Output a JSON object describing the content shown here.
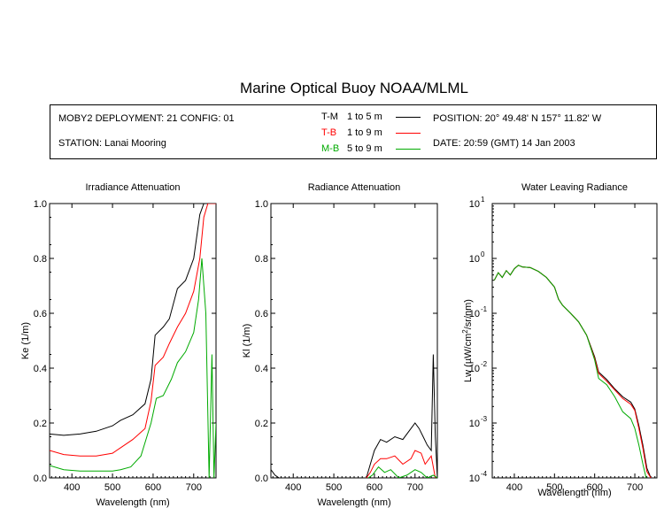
{
  "title": "Marine Optical Buoy NOAA/MLML",
  "info": {
    "deployment": "MOBY2 DEPLOYMENT: 21 CONFIG: 01",
    "station": "STATION: Lanai Mooring",
    "position": "POSITION: 20° 49.48' N   157° 11.82' W",
    "date": "DATE: 20:59 (GMT) 14 Jan 2003",
    "legend": [
      {
        "code": "T-M",
        "range": "1 to 5  m",
        "color": "#000000"
      },
      {
        "code": "T-B",
        "range": "1 to 9  m",
        "color": "#ff0000"
      },
      {
        "code": "M-B",
        "range": "5 to 9  m",
        "color": "#00aa00"
      }
    ]
  },
  "chart_data": [
    {
      "type": "line",
      "title": "Irradiance Attenuation",
      "xlabel": "Wavelength (nm)",
      "ylabel": "Ke  (1/m)",
      "xlim": [
        345,
        755
      ],
      "ylim": [
        0,
        1
      ],
      "xticks": [
        400,
        500,
        600,
        700
      ],
      "yticks": [
        "0.0",
        "0.2",
        "0.4",
        "0.6",
        "0.8",
        "1.0"
      ],
      "series": [
        {
          "color": "#000000",
          "points": [
            [
              345,
              0.16
            ],
            [
              380,
              0.155
            ],
            [
              420,
              0.16
            ],
            [
              460,
              0.17
            ],
            [
              500,
              0.19
            ],
            [
              520,
              0.21
            ],
            [
              550,
              0.23
            ],
            [
              580,
              0.27
            ],
            [
              595,
              0.36
            ],
            [
              605,
              0.52
            ],
            [
              625,
              0.55
            ],
            [
              640,
              0.58
            ],
            [
              660,
              0.69
            ],
            [
              680,
              0.72
            ],
            [
              700,
              0.8
            ],
            [
              715,
              0.96
            ],
            [
              725,
              1.0
            ],
            [
              755,
              1.0
            ]
          ]
        },
        {
          "color": "#ff0000",
          "points": [
            [
              345,
              0.1
            ],
            [
              380,
              0.085
            ],
            [
              420,
              0.08
            ],
            [
              460,
              0.08
            ],
            [
              500,
              0.09
            ],
            [
              520,
              0.11
            ],
            [
              550,
              0.14
            ],
            [
              580,
              0.18
            ],
            [
              595,
              0.28
            ],
            [
              605,
              0.41
            ],
            [
              625,
              0.44
            ],
            [
              640,
              0.49
            ],
            [
              660,
              0.55
            ],
            [
              680,
              0.6
            ],
            [
              700,
              0.68
            ],
            [
              715,
              0.8
            ],
            [
              725,
              0.95
            ],
            [
              735,
              1.0
            ],
            [
              755,
              1.0
            ]
          ]
        },
        {
          "color": "#00aa00",
          "points": [
            [
              345,
              0.045
            ],
            [
              380,
              0.03
            ],
            [
              420,
              0.025
            ],
            [
              460,
              0.025
            ],
            [
              500,
              0.025
            ],
            [
              520,
              0.03
            ],
            [
              545,
              0.04
            ],
            [
              570,
              0.08
            ],
            [
              595,
              0.2
            ],
            [
              608,
              0.29
            ],
            [
              625,
              0.3
            ],
            [
              645,
              0.36
            ],
            [
              660,
              0.42
            ],
            [
              680,
              0.46
            ],
            [
              700,
              0.53
            ],
            [
              712,
              0.65
            ],
            [
              720,
              0.8
            ],
            [
              730,
              0.6
            ],
            [
              738,
              0.0
            ],
            [
              745,
              0.45
            ],
            [
              750,
              0.0
            ],
            [
              755,
              0.2
            ]
          ]
        }
      ]
    },
    {
      "type": "line",
      "title": "Radiance Attenuation",
      "xlabel": "Wavelength (nm)",
      "ylabel": "Kl  (1/m)",
      "xlim": [
        345,
        755
      ],
      "ylim": [
        0,
        1
      ],
      "xticks": [
        400,
        500,
        600,
        700
      ],
      "yticks": [
        "0.0",
        "0.2",
        "0.4",
        "0.6",
        "0.8",
        "1.0"
      ],
      "series": [
        {
          "color": "#000000",
          "points": [
            [
              345,
              0.03
            ],
            [
              355,
              0.01
            ],
            [
              365,
              0.0
            ],
            [
              580,
              0.0
            ],
            [
              590,
              0.05
            ],
            [
              600,
              0.1
            ],
            [
              615,
              0.14
            ],
            [
              630,
              0.13
            ],
            [
              650,
              0.15
            ],
            [
              670,
              0.14
            ],
            [
              690,
              0.18
            ],
            [
              700,
              0.2
            ],
            [
              710,
              0.18
            ],
            [
              720,
              0.15
            ],
            [
              730,
              0.12
            ],
            [
              740,
              0.1
            ],
            [
              745,
              0.45
            ],
            [
              750,
              0.15
            ],
            [
              755,
              0.0
            ]
          ]
        },
        {
          "color": "#ff0000",
          "points": [
            [
              580,
              0.0
            ],
            [
              590,
              0.02
            ],
            [
              600,
              0.05
            ],
            [
              615,
              0.07
            ],
            [
              630,
              0.07
            ],
            [
              650,
              0.08
            ],
            [
              670,
              0.05
            ],
            [
              690,
              0.07
            ],
            [
              700,
              0.1
            ],
            [
              715,
              0.09
            ],
            [
              725,
              0.05
            ],
            [
              740,
              0.08
            ],
            [
              750,
              0.0
            ]
          ]
        },
        {
          "color": "#00aa00",
          "points": [
            [
              585,
              0.0
            ],
            [
              595,
              0.01
            ],
            [
              610,
              0.04
            ],
            [
              625,
              0.02
            ],
            [
              640,
              0.03
            ],
            [
              660,
              0.0
            ],
            [
              680,
              0.01
            ],
            [
              700,
              0.03
            ],
            [
              715,
              0.02
            ],
            [
              730,
              0.0
            ],
            [
              745,
              0.01
            ],
            [
              755,
              0.0
            ]
          ]
        }
      ]
    },
    {
      "type": "line",
      "title": "Water Leaving Radiance",
      "xlabel": "Wavelength (nm)",
      "ylabel": "Lw  (µW/cm²/sr/nm)",
      "ylabel_parts": {
        "pre": "Lw  (",
        "mu": "µ",
        "mid": "W/cm",
        "sup": "2",
        "post": "/sr/nm)"
      },
      "yscale": "log",
      "xlim": [
        345,
        755
      ],
      "ylim": [
        0.0001,
        10
      ],
      "xticks": [
        400,
        500,
        600,
        700
      ],
      "yticks": [
        {
          "base": "10",
          "exp": "-4",
          "value": 0.0001
        },
        {
          "base": "10",
          "exp": "-3",
          "value": 0.001
        },
        {
          "base": "10",
          "exp": "-2",
          "value": 0.01
        },
        {
          "base": "10",
          "exp": "-1",
          "value": 0.1
        },
        {
          "base": "10",
          "exp": "0",
          "value": 1
        },
        {
          "base": "10",
          "exp": "1",
          "value": 10
        }
      ],
      "series": [
        {
          "color": "#000000",
          "points": [
            [
              350,
              0.4
            ],
            [
              360,
              0.55
            ],
            [
              370,
              0.45
            ],
            [
              380,
              0.6
            ],
            [
              390,
              0.5
            ],
            [
              400,
              0.65
            ],
            [
              410,
              0.75
            ],
            [
              420,
              0.7
            ],
            [
              440,
              0.68
            ],
            [
              460,
              0.58
            ],
            [
              480,
              0.45
            ],
            [
              500,
              0.3
            ],
            [
              510,
              0.18
            ],
            [
              520,
              0.14
            ],
            [
              540,
              0.1
            ],
            [
              560,
              0.07
            ],
            [
              580,
              0.04
            ],
            [
              600,
              0.016
            ],
            [
              610,
              0.0085
            ],
            [
              630,
              0.0062
            ],
            [
              650,
              0.0042
            ],
            [
              670,
              0.003
            ],
            [
              690,
              0.0024
            ],
            [
              700,
              0.0018
            ],
            [
              710,
              0.0009
            ],
            [
              720,
              0.0004
            ],
            [
              730,
              0.00015
            ],
            [
              740,
              0.0001
            ]
          ]
        },
        {
          "color": "#ff0000",
          "points": [
            [
              350,
              0.4
            ],
            [
              360,
              0.55
            ],
            [
              370,
              0.45
            ],
            [
              380,
              0.6
            ],
            [
              390,
              0.5
            ],
            [
              400,
              0.65
            ],
            [
              410,
              0.75
            ],
            [
              420,
              0.7
            ],
            [
              440,
              0.68
            ],
            [
              460,
              0.58
            ],
            [
              480,
              0.45
            ],
            [
              500,
              0.3
            ],
            [
              510,
              0.18
            ],
            [
              520,
              0.14
            ],
            [
              540,
              0.1
            ],
            [
              560,
              0.07
            ],
            [
              580,
              0.04
            ],
            [
              600,
              0.015
            ],
            [
              610,
              0.008
            ],
            [
              630,
              0.0058
            ],
            [
              650,
              0.004
            ],
            [
              670,
              0.0028
            ],
            [
              690,
              0.0022
            ],
            [
              700,
              0.0017
            ],
            [
              710,
              0.0008
            ],
            [
              720,
              0.00035
            ],
            [
              730,
              0.00013
            ],
            [
              740,
              0.0001
            ]
          ]
        },
        {
          "color": "#00aa00",
          "points": [
            [
              350,
              0.4
            ],
            [
              360,
              0.55
            ],
            [
              370,
              0.45
            ],
            [
              380,
              0.6
            ],
            [
              390,
              0.5
            ],
            [
              400,
              0.65
            ],
            [
              410,
              0.75
            ],
            [
              420,
              0.7
            ],
            [
              440,
              0.68
            ],
            [
              460,
              0.58
            ],
            [
              480,
              0.45
            ],
            [
              500,
              0.3
            ],
            [
              510,
              0.18
            ],
            [
              520,
              0.14
            ],
            [
              540,
              0.1
            ],
            [
              560,
              0.07
            ],
            [
              580,
              0.04
            ],
            [
              600,
              0.014
            ],
            [
              610,
              0.0065
            ],
            [
              630,
              0.005
            ],
            [
              650,
              0.003
            ],
            [
              670,
              0.0016
            ],
            [
              690,
              0.0012
            ],
            [
              700,
              0.0008
            ],
            [
              710,
              0.0004
            ],
            [
              720,
              0.00018
            ],
            [
              728,
              0.0001
            ]
          ]
        }
      ]
    }
  ]
}
